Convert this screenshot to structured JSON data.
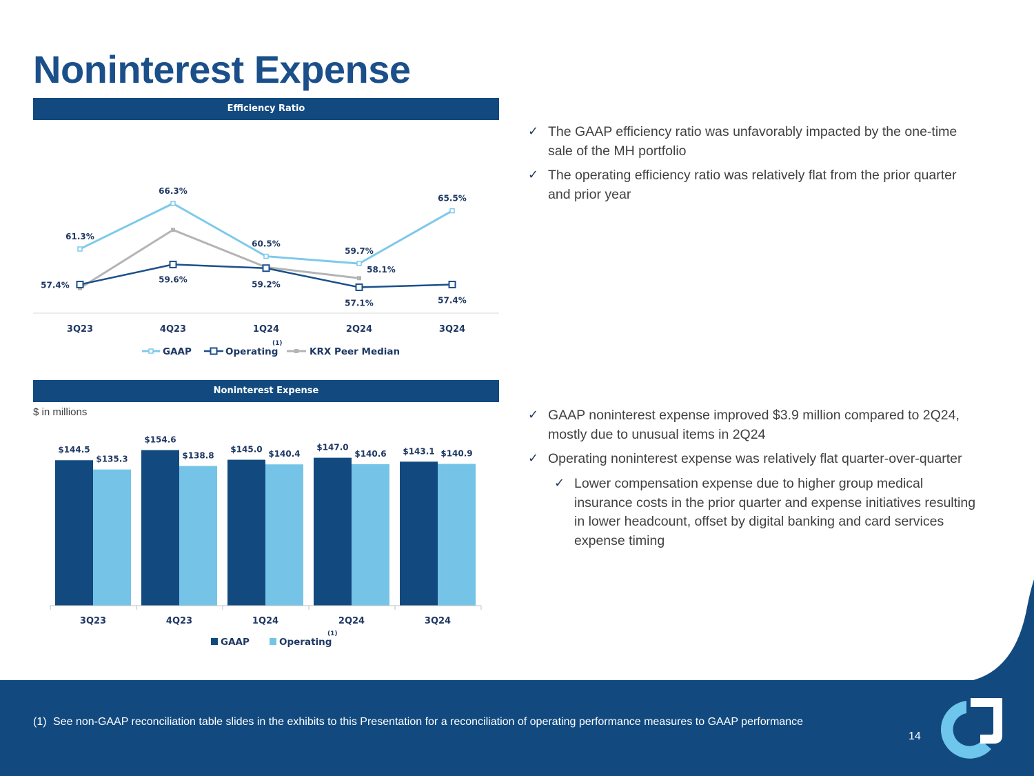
{
  "title": "Noninterest Expense",
  "colors": {
    "navy": "#124a80",
    "gaap_line": "#7ec9ea",
    "operating_line": "#1b4f8a",
    "peer_line": "#b4b4b4",
    "bar_gaap": "#124a80",
    "bar_operating": "#75c4e8"
  },
  "panels": {
    "efficiency_title": "Efficiency Ratio",
    "expense_title": "Noninterest Expense"
  },
  "unit_note": "$ in millions",
  "chart_data": [
    {
      "type": "line",
      "title": "Efficiency Ratio",
      "categories": [
        "3Q23",
        "4Q23",
        "1Q24",
        "2Q24",
        "3Q24"
      ],
      "series": [
        {
          "name": "GAAP",
          "values": [
            61.3,
            66.3,
            60.5,
            59.7,
            65.5
          ],
          "labels": [
            "61.3%",
            "66.3%",
            "60.5%",
            "59.7%",
            "65.5%"
          ]
        },
        {
          "name": "Operating",
          "name_sup": "(1)",
          "values": [
            57.4,
            59.6,
            59.2,
            57.1,
            57.4
          ],
          "labels": [
            "57.4%",
            "59.6%",
            "59.2%",
            "57.1%",
            "57.4%"
          ]
        },
        {
          "name": "KRX Peer Median",
          "values": [
            57.0,
            63.4,
            59.3,
            58.1,
            null
          ],
          "labels": [
            null,
            null,
            null,
            "58.1%",
            null
          ]
        }
      ],
      "legend": "bottom",
      "grid": false
    },
    {
      "type": "bar",
      "title": "Noninterest Expense",
      "categories": [
        "3Q23",
        "4Q23",
        "1Q24",
        "2Q24",
        "3Q24"
      ],
      "series": [
        {
          "name": "GAAP",
          "values": [
            144.5,
            154.6,
            145.0,
            147.0,
            143.1
          ],
          "labels": [
            "$144.5",
            "$154.6",
            "$145.0",
            "$147.0",
            "$143.1"
          ]
        },
        {
          "name": "Operating",
          "name_sup": "(1)",
          "values": [
            135.3,
            138.8,
            140.4,
            140.6,
            140.9
          ],
          "labels": [
            "$135.3",
            "$138.8",
            "$140.4",
            "$140.6",
            "$140.9"
          ]
        }
      ],
      "legend": "bottom",
      "grid": false
    }
  ],
  "bullets_top": [
    {
      "text": "The GAAP efficiency ratio was unfavorably impacted by the one-time sale of the MH portfolio"
    },
    {
      "text": "The operating efficiency ratio was relatively flat from the prior quarter and prior year"
    }
  ],
  "bullets_bottom": [
    {
      "text": "GAAP noninterest expense improved $3.9 million compared to 2Q24, mostly due to unusual items in 2Q24"
    },
    {
      "text": "Operating noninterest expense was relatively flat quarter-over-quarter"
    },
    {
      "text": "Lower compensation expense due to higher group medical insurance costs in the prior quarter and expense initiatives resulting in lower headcount, offset by digital banking and card services expense timing"
    }
  ],
  "check_mark": "✓",
  "footer": {
    "footnote_mark": "(1)",
    "footnote": "See non-GAAP reconciliation table slides in the exhibits to this Presentation for a reconciliation of operating performance measures to GAAP performance",
    "page_number": "14"
  }
}
